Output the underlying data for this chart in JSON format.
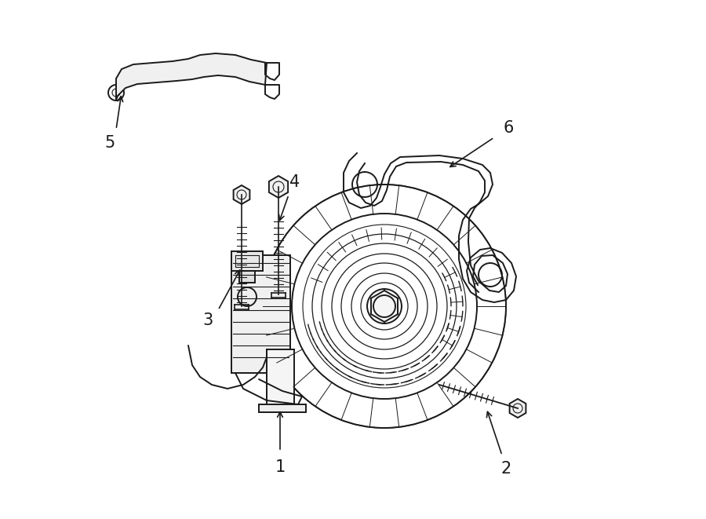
{
  "background_color": "#ffffff",
  "line_color": "#1a1a1a",
  "line_width": 1.4,
  "fig_width": 9.0,
  "fig_height": 6.61,
  "dpi": 100
}
